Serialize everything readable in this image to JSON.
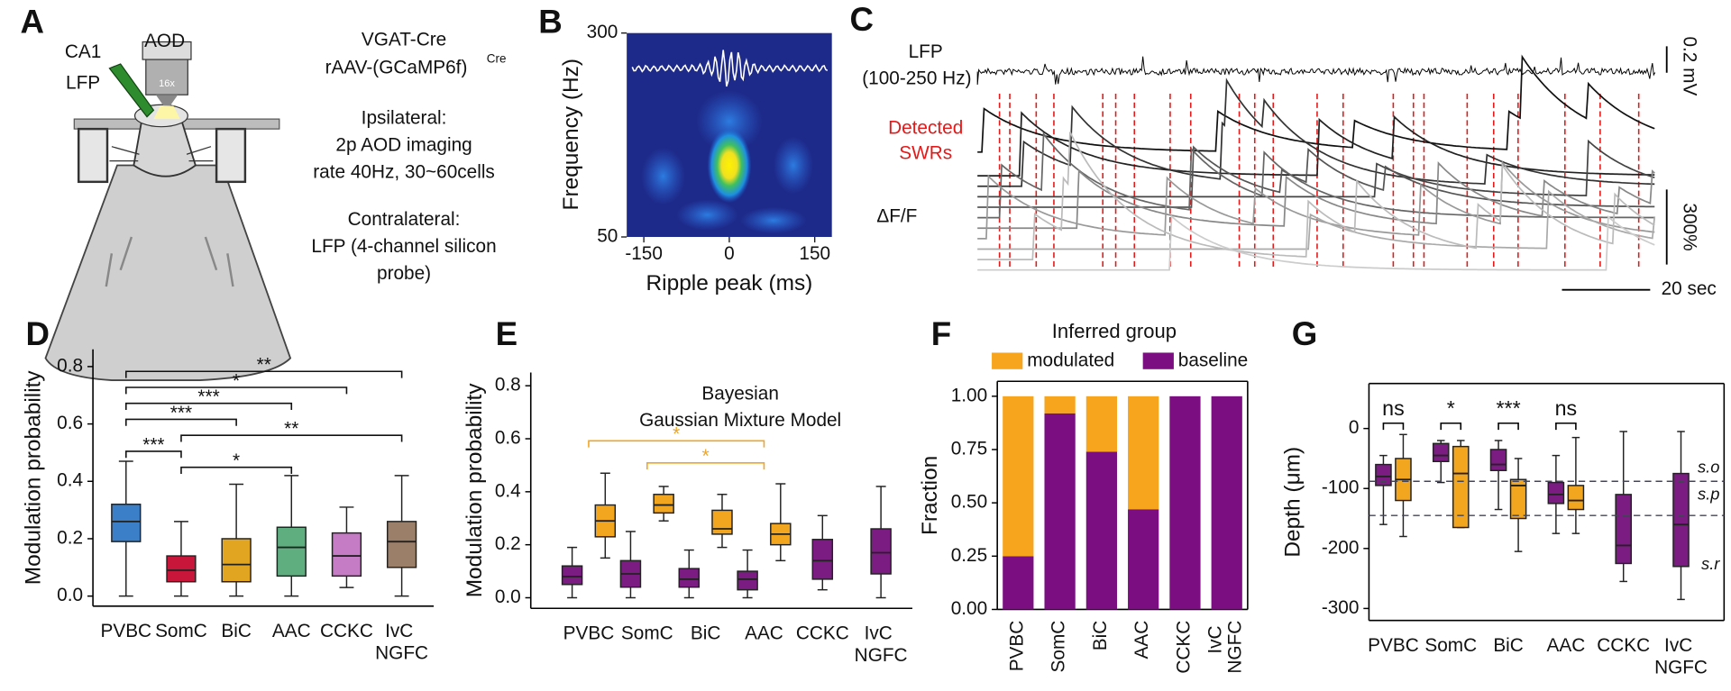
{
  "panels": {
    "A": {
      "letter": "A",
      "probe_label": [
        "CA1",
        "LFP"
      ],
      "objective_label": "AOD",
      "magnification": "16x",
      "genotype": "VGAT-Cre",
      "virus": "rAAV-(GCaMP6f)",
      "virus_superscript": "Cre",
      "ipsilateral": [
        "Ipsilateral:",
        "2p AOD imaging",
        "rate 40Hz, 30~60cells"
      ],
      "contralateral": [
        "Contralateral:",
        "LFP (4-channel silicon",
        "probe)"
      ]
    },
    "C": {
      "letter": "C",
      "lfp_label": [
        "LFP",
        "(100-250 Hz)"
      ],
      "swr_label": [
        "Detected",
        "SWRs"
      ],
      "trace_label": "ΔF/F",
      "lfp_scale": "0.2 mV",
      "trace_scale": "300%",
      "time_scale": "20 sec"
    }
  },
  "chart_data": [
    {
      "type": "spectrogram",
      "panel": "B",
      "xlabel": "Ripple peak (ms)",
      "ylabel": "Frequency (Hz)",
      "xlim": [
        -180,
        180
      ],
      "xticks": [
        -150,
        0,
        150
      ],
      "ylim": [
        50,
        300
      ],
      "yticks": [
        50,
        300
      ]
    },
    {
      "type": "box",
      "panel": "D",
      "ylabel": "Modulation probability",
      "frame": "open",
      "categories": [
        "PVBC",
        "SomC",
        "BiC",
        "AAC",
        "CCKC",
        "IvC NGFC"
      ],
      "colors": [
        "#3b7fc8",
        "#c8153a",
        "#e2a521",
        "#5fae80",
        "#c57cc4",
        "#9c7f68"
      ],
      "boxes": [
        {
          "whislo": 0.0,
          "q1": 0.19,
          "med": 0.26,
          "q3": 0.32,
          "whishi": 0.47
        },
        {
          "whislo": 0.0,
          "q1": 0.05,
          "med": 0.09,
          "q3": 0.14,
          "whishi": 0.26
        },
        {
          "whislo": 0.0,
          "q1": 0.05,
          "med": 0.11,
          "q3": 0.2,
          "whishi": 0.39
        },
        {
          "whislo": 0.0,
          "q1": 0.07,
          "med": 0.17,
          "q3": 0.24,
          "whishi": 0.42
        },
        {
          "whislo": 0.03,
          "q1": 0.07,
          "med": 0.14,
          "q3": 0.22,
          "whishi": 0.31
        },
        {
          "whislo": 0.0,
          "q1": 0.1,
          "med": 0.19,
          "q3": 0.26,
          "whishi": 0.42
        }
      ],
      "ylim": [
        -0.035,
        0.86
      ],
      "yticks": [
        {
          "value": 0,
          "label": "0.0"
        },
        0.2,
        0.4,
        0.6,
        0.8
      ],
      "significance_color": "#111111",
      "significance": [
        {
          "from": "PVBC",
          "to": "IvC NGFC",
          "label": "**"
        },
        {
          "from": "PVBC",
          "to": "CCKC",
          "label": "*"
        },
        {
          "from": "PVBC",
          "to": "AAC",
          "label": "***"
        },
        {
          "from": "PVBC",
          "to": "BiC",
          "label": "***"
        },
        {
          "from": "SomC",
          "to": "IvC NGFC",
          "label": "**"
        },
        {
          "from": "PVBC",
          "to": "SomC",
          "label": "***"
        },
        {
          "from": "SomC",
          "to": "AAC",
          "label": "*"
        }
      ]
    },
    {
      "type": "grouped_box",
      "panel": "E",
      "ylabel": "Modulation probability",
      "frame": "open",
      "title": [
        "Bayesian",
        "Gaussian Mixture Model"
      ],
      "categories": [
        "PVBC",
        "SomC",
        "BiC",
        "AAC",
        "CCKC",
        "IvC NGFC"
      ],
      "series": [
        {
          "color": "#7b1c83",
          "boxes": [
            {
              "whislo": 0.0,
              "q1": 0.05,
              "med": 0.08,
              "q3": 0.12,
              "whishi": 0.19
            },
            {
              "whislo": 0.0,
              "q1": 0.04,
              "med": 0.09,
              "q3": 0.14,
              "whishi": 0.25
            },
            {
              "whislo": 0.0,
              "q1": 0.04,
              "med": 0.07,
              "q3": 0.11,
              "whishi": 0.18
            },
            {
              "whislo": 0.0,
              "q1": 0.03,
              "med": 0.07,
              "q3": 0.1,
              "whishi": 0.18
            },
            {
              "whislo": 0.03,
              "q1": 0.07,
              "med": 0.14,
              "q3": 0.22,
              "whishi": 0.31
            },
            {
              "whislo": 0.0,
              "q1": 0.09,
              "med": 0.17,
              "q3": 0.26,
              "whishi": 0.42
            }
          ]
        },
        {
          "color": "#f2a51f",
          "boxes": [
            {
              "whislo": 0.15,
              "q1": 0.23,
              "med": 0.29,
              "q3": 0.35,
              "whishi": 0.47
            },
            {
              "whislo": 0.29,
              "q1": 0.32,
              "med": 0.35,
              "q3": 0.39,
              "whishi": 0.42
            },
            {
              "whislo": 0.19,
              "q1": 0.24,
              "med": 0.26,
              "q3": 0.33,
              "whishi": 0.39
            },
            {
              "whislo": 0.14,
              "q1": 0.2,
              "med": 0.24,
              "q3": 0.28,
              "whishi": 0.43
            },
            null,
            null
          ]
        }
      ],
      "ylim": [
        -0.04,
        0.85
      ],
      "yticks": [
        {
          "value": 0,
          "label": "0.0"
        },
        0.2,
        0.4,
        0.6,
        0.8
      ],
      "significance_color": "#f2a51f",
      "significance": [
        {
          "from": "PVBC",
          "to": "AAC",
          "label": "*"
        },
        {
          "from": "SomC",
          "to": "AAC",
          "label": "*"
        }
      ]
    },
    {
      "type": "stacked_bar",
      "panel": "F",
      "ylabel": "Fraction",
      "frame": "full",
      "legend_title": "Inferred group",
      "categories": [
        "PVBC",
        "SomC",
        "BiC",
        "AAC",
        "CCKC",
        "IvC NGFC"
      ],
      "series": [
        {
          "name": "modulated",
          "color": "#f7a51c",
          "values": [
            0.75,
            0.08,
            0.26,
            0.53,
            0,
            0
          ]
        },
        {
          "name": "baseline",
          "color": "#7b0f82",
          "values": [
            0.25,
            0.92,
            0.74,
            0.47,
            1,
            1
          ]
        }
      ],
      "ylim": [
        0,
        1.07
      ],
      "yticks": [
        {
          "value": 0,
          "label": "0.00"
        },
        0.25,
        {
          "value": 0.5,
          "label": "0.50"
        },
        0.75,
        {
          "value": 1,
          "label": "1.00"
        }
      ]
    },
    {
      "type": "grouped_box",
      "panel": "G",
      "ylabel": "Depth (μm)",
      "frame": "full",
      "categories": [
        "PVBC",
        "SomC",
        "BiC",
        "AAC",
        "CCKC",
        "IvC NGFC"
      ],
      "series": [
        {
          "color": "#7b1c83",
          "boxes": [
            {
              "whislo": -160,
              "q1": -95,
              "med": -80,
              "q3": -60,
              "whishi": -45
            },
            {
              "whislo": -90,
              "q1": -55,
              "med": -45,
              "q3": -25,
              "whishi": -20
            },
            {
              "whislo": -135,
              "q1": -70,
              "med": -60,
              "q3": -35,
              "whishi": -20
            },
            {
              "whislo": -175,
              "q1": -125,
              "med": -110,
              "q3": -90,
              "whishi": -45
            },
            {
              "whislo": -255,
              "q1": -225,
              "med": -195,
              "q3": -110,
              "whishi": -5
            },
            {
              "whislo": -285,
              "q1": -230,
              "med": -160,
              "q3": -75,
              "whishi": -5
            }
          ]
        },
        {
          "color": "#f2a51f",
          "boxes": [
            {
              "whislo": -180,
              "q1": -120,
              "med": -85,
              "q3": -50,
              "whishi": -10
            },
            {
              "whislo": -165,
              "q1": -165,
              "med": -75,
              "q3": -30,
              "whishi": -20
            },
            {
              "whislo": -205,
              "q1": -150,
              "med": -95,
              "q3": -85,
              "whishi": -50
            },
            {
              "whislo": -175,
              "q1": -135,
              "med": -120,
              "q3": -95,
              "whishi": -15
            },
            null,
            null
          ]
        }
      ],
      "ylim": [
        -320,
        75
      ],
      "yticks": [
        -300,
        -200,
        -100,
        0
      ],
      "annotations": [
        "ns",
        "*",
        "***",
        "ns",
        null,
        null
      ],
      "boundaries": [
        -88,
        -145
      ],
      "layer_labels": [
        "s.o",
        "s.p",
        "s.r"
      ]
    }
  ]
}
